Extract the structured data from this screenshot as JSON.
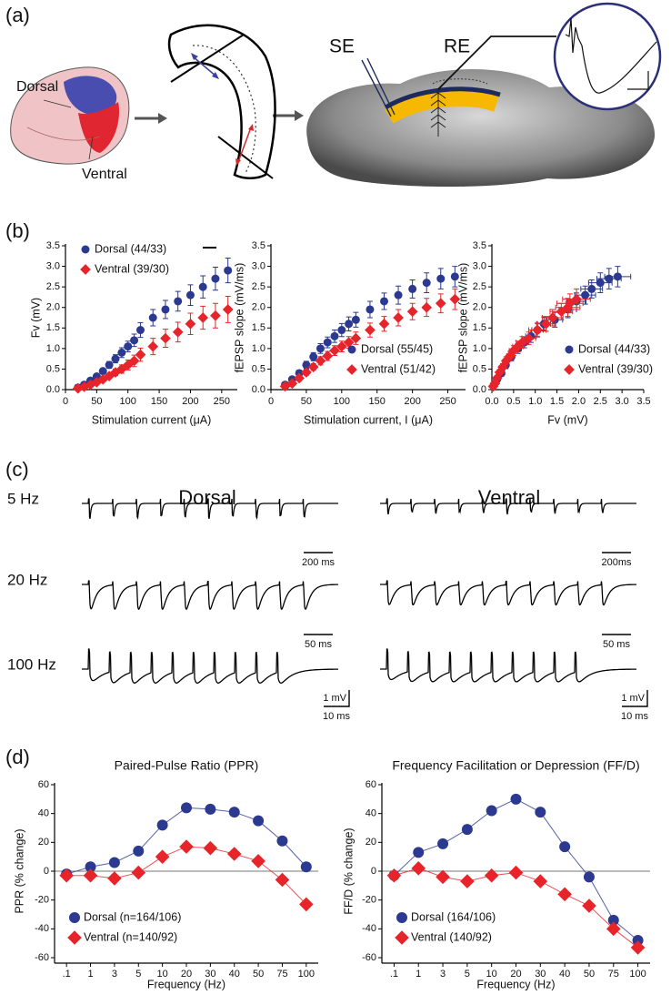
{
  "panels": {
    "a": "(a)",
    "b": "(b)",
    "c": "(c)",
    "d": "(d)"
  },
  "diagram": {
    "dorsal": "Dorsal",
    "ventral": "Ventral",
    "se": "SE",
    "re": "RE"
  },
  "traces": {
    "columns": [
      "Dorsal",
      "Ventral"
    ],
    "rows": [
      {
        "label": "5 Hz",
        "scales": [
          [
            "200 ms"
          ],
          [
            "200ms"
          ]
        ]
      },
      {
        "label": "20 Hz",
        "scales": [
          [
            "50 ms"
          ],
          [
            "50 ms"
          ]
        ]
      },
      {
        "label": "100 Hz",
        "scales": [
          [
            "1 mV",
            "10 ms"
          ],
          [
            "1 mV",
            "10 ms"
          ]
        ]
      }
    ]
  },
  "chart_data": [
    {
      "type": "scatter",
      "x_label": "Stimulation current (μA)",
      "y_label": "Fv (mV)",
      "x": [
        20,
        30,
        40,
        50,
        60,
        70,
        80,
        90,
        100,
        110,
        120,
        140,
        160,
        180,
        200,
        220,
        240,
        260
      ],
      "xlim": [
        0,
        275
      ],
      "xticks": [
        0,
        50,
        100,
        150,
        200,
        250
      ],
      "ylim": [
        0,
        3.5
      ],
      "yticks": [
        {
          "value": 0,
          "label": "0.0"
        },
        0.5,
        {
          "value": 1,
          "label": "1.0"
        },
        1.5,
        {
          "value": 2,
          "label": "2.0"
        },
        2.5,
        {
          "value": 3,
          "label": "3.0"
        },
        3.5
      ],
      "legend": "upper left",
      "series": [
        {
          "name": "Dorsal (44/33)",
          "color": "#2b3990",
          "marker": "circle",
          "values": [
            0.05,
            0.12,
            0.22,
            0.32,
            0.45,
            0.6,
            0.75,
            0.9,
            1.05,
            1.2,
            1.45,
            1.75,
            1.95,
            2.15,
            2.3,
            2.5,
            2.7,
            2.9
          ],
          "errors": [
            0.02,
            0.03,
            0.04,
            0.05,
            0.06,
            0.08,
            0.1,
            0.12,
            0.13,
            0.15,
            0.18,
            0.2,
            0.22,
            0.24,
            0.25,
            0.27,
            0.28,
            0.3
          ]
        },
        {
          "name": "Ventral (39/30)",
          "color": "#e8242b",
          "marker": "diamond",
          "values": [
            0.03,
            0.07,
            0.12,
            0.18,
            0.25,
            0.33,
            0.42,
            0.5,
            0.6,
            0.7,
            0.85,
            1.05,
            1.25,
            1.4,
            1.6,
            1.75,
            1.8,
            1.95
          ],
          "errors": [
            0.01,
            0.02,
            0.03,
            0.04,
            0.05,
            0.06,
            0.08,
            0.1,
            0.12,
            0.14,
            0.16,
            0.2,
            0.22,
            0.24,
            0.26,
            0.28,
            0.3,
            0.32
          ]
        }
      ]
    },
    {
      "type": "scatter",
      "x_label": "Stimulation current, I (μA)",
      "y_label": "fEPSP slope (mV/ms)",
      "x": [
        20,
        30,
        40,
        50,
        60,
        70,
        80,
        90,
        100,
        110,
        120,
        140,
        160,
        180,
        200,
        220,
        240,
        260
      ],
      "xlim": [
        0,
        275
      ],
      "xticks": [
        0,
        50,
        100,
        150,
        200,
        250
      ],
      "ylim": [
        0,
        3.5
      ],
      "yticks": [
        {
          "value": 0,
          "label": "0.0"
        },
        0.5,
        {
          "value": 1,
          "label": "1.0"
        },
        1.5,
        {
          "value": 2,
          "label": "2.0"
        },
        2.5,
        {
          "value": 3,
          "label": "3.0"
        },
        3.5
      ],
      "legend": "lower right",
      "series": [
        {
          "name": "Dorsal (55/45)",
          "color": "#2b3990",
          "marker": "circle",
          "values": [
            0.12,
            0.25,
            0.4,
            0.6,
            0.8,
            1.0,
            1.15,
            1.3,
            1.45,
            1.6,
            1.7,
            1.95,
            2.15,
            2.3,
            2.45,
            2.6,
            2.7,
            2.75
          ],
          "errors": [
            0.03,
            0.05,
            0.07,
            0.09,
            0.1,
            0.12,
            0.13,
            0.15,
            0.16,
            0.17,
            0.18,
            0.2,
            0.2,
            0.22,
            0.22,
            0.24,
            0.25,
            0.25
          ]
        },
        {
          "name": "Ventral (51/42)",
          "color": "#e8242b",
          "marker": "diamond",
          "values": [
            0.08,
            0.15,
            0.28,
            0.42,
            0.55,
            0.7,
            0.82,
            0.95,
            1.05,
            1.15,
            1.25,
            1.45,
            1.6,
            1.75,
            1.9,
            2.0,
            2.1,
            2.2
          ],
          "errors": [
            0.02,
            0.04,
            0.06,
            0.07,
            0.08,
            0.1,
            0.11,
            0.12,
            0.13,
            0.14,
            0.15,
            0.17,
            0.18,
            0.2,
            0.2,
            0.22,
            0.23,
            0.25
          ]
        }
      ]
    },
    {
      "type": "scatter",
      "x_label": "Fv (mV)",
      "y_label": "fEPSP slope (mV/ms)",
      "xlim": [
        0,
        3.5
      ],
      "xticks": [
        {
          "value": 0,
          "label": "0.0"
        },
        0.5,
        {
          "value": 1,
          "label": "1.0"
        },
        1.5,
        {
          "value": 2,
          "label": "2.0"
        },
        2.5,
        {
          "value": 3,
          "label": "3.0"
        },
        3.5
      ],
      "ylim": [
        0,
        3.5
      ],
      "yticks": [
        {
          "value": 0,
          "label": "0.0"
        },
        0.5,
        {
          "value": 1,
          "label": "1.0"
        },
        1.5,
        {
          "value": 2,
          "label": "2.0"
        },
        2.5,
        {
          "value": 3,
          "label": "3.0"
        },
        3.5
      ],
      "legend": "lower right",
      "series": [
        {
          "name": "Dorsal (44/33)",
          "color": "#2b3990",
          "marker": "circle",
          "x": [
            0.05,
            0.12,
            0.22,
            0.32,
            0.45,
            0.6,
            0.75,
            0.9,
            1.05,
            1.2,
            1.45,
            1.75,
            1.95,
            2.15,
            2.3,
            2.5,
            2.7,
            2.9
          ],
          "x_errors": [
            0.02,
            0.03,
            0.04,
            0.05,
            0.06,
            0.08,
            0.1,
            0.12,
            0.13,
            0.15,
            0.18,
            0.2,
            0.22,
            0.24,
            0.25,
            0.27,
            0.28,
            0.3
          ],
          "values": [
            0.12,
            0.25,
            0.4,
            0.6,
            0.8,
            1.0,
            1.15,
            1.3,
            1.45,
            1.6,
            1.7,
            1.95,
            2.15,
            2.3,
            2.45,
            2.6,
            2.7,
            2.75
          ],
          "errors": [
            0.03,
            0.05,
            0.07,
            0.09,
            0.1,
            0.12,
            0.13,
            0.15,
            0.16,
            0.17,
            0.18,
            0.2,
            0.2,
            0.22,
            0.22,
            0.24,
            0.25,
            0.25
          ]
        },
        {
          "name": "Ventral (39/30)",
          "color": "#e8242b",
          "marker": "diamond",
          "x": [
            0.03,
            0.07,
            0.12,
            0.18,
            0.25,
            0.33,
            0.42,
            0.5,
            0.6,
            0.7,
            0.85,
            1.05,
            1.25,
            1.4,
            1.6,
            1.75,
            1.8,
            1.95
          ],
          "x_errors": [
            0.01,
            0.02,
            0.03,
            0.04,
            0.05,
            0.06,
            0.08,
            0.1,
            0.12,
            0.14,
            0.16,
            0.2,
            0.22,
            0.24,
            0.26,
            0.28,
            0.3,
            0.32
          ],
          "values": [
            0.08,
            0.15,
            0.28,
            0.42,
            0.55,
            0.7,
            0.82,
            0.95,
            1.05,
            1.15,
            1.25,
            1.45,
            1.6,
            1.75,
            1.9,
            2.0,
            2.1,
            2.2
          ],
          "errors": [
            0.02,
            0.04,
            0.06,
            0.07,
            0.08,
            0.1,
            0.11,
            0.12,
            0.13,
            0.14,
            0.15,
            0.17,
            0.18,
            0.2,
            0.2,
            0.22,
            0.23,
            0.25
          ]
        }
      ]
    },
    {
      "type": "line",
      "title": "Paired-Pulse Ratio (PPR)",
      "x_label": "Frequency (Hz)",
      "y_label": "PPR (% change)",
      "categories": [
        ".1",
        "1",
        "3",
        "5",
        "10",
        "20",
        "30",
        "40",
        "50",
        "75",
        "100"
      ],
      "ylim": [
        -60,
        60
      ],
      "yticks": [
        -60,
        -40,
        -20,
        0,
        20,
        40,
        60
      ],
      "zero_line": true,
      "legend": "lower left",
      "series": [
        {
          "name": "Dorsal (n=164/106)",
          "color": "#2b3990",
          "marker": "circle",
          "values": [
            -2,
            3,
            6,
            14,
            32,
            44,
            43,
            41,
            35,
            21,
            3
          ]
        },
        {
          "name": "Ventral (n=140/92)",
          "color": "#e8242b",
          "marker": "diamond",
          "values": [
            -3,
            -3,
            -5,
            -1,
            10,
            17,
            16,
            12,
            7,
            -6,
            -23
          ]
        }
      ]
    },
    {
      "type": "line",
      "title": "Frequency Facilitation or Depression (FF/D)",
      "x_label": "Frequency (Hz)",
      "y_label": "FF/D (% change)",
      "categories": [
        ".1",
        "1",
        "3",
        "5",
        "10",
        "20",
        "30",
        "40",
        "50",
        "75",
        "100"
      ],
      "ylim": [
        -60,
        60
      ],
      "yticks": [
        -60,
        -40,
        -20,
        0,
        20,
        40,
        60
      ],
      "zero_line": true,
      "legend": "lower left",
      "series": [
        {
          "name": "Dorsal (164/106)",
          "color": "#2b3990",
          "marker": "circle",
          "values": [
            -3,
            13,
            19,
            29,
            42,
            50,
            41,
            17,
            -4,
            -34,
            -48
          ]
        },
        {
          "name": "Ventral (140/92)",
          "color": "#e8242b",
          "marker": "diamond",
          "values": [
            -3,
            2,
            -4,
            -7,
            -3,
            -1,
            -7,
            -16,
            -24,
            -40,
            -53
          ]
        }
      ]
    }
  ]
}
